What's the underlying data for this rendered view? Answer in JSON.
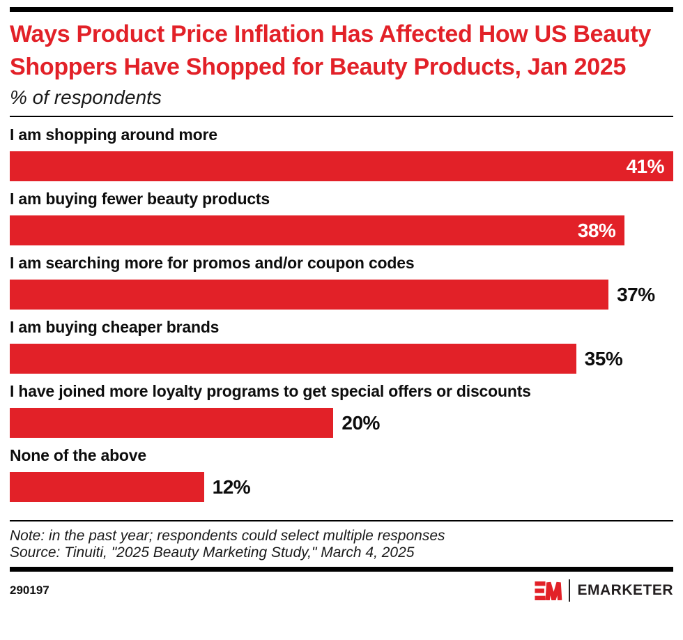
{
  "header": {
    "title": "Ways Product Price Inflation Has Affected How US Beauty Shoppers Have Shopped for Beauty Products, Jan 2025",
    "subtitle": "% of respondents"
  },
  "chart_data": {
    "type": "bar",
    "orientation": "horizontal",
    "title": "Ways Product Price Inflation Has Affected How US Beauty Shoppers Have Shopped for Beauty Products, Jan 2025",
    "subtitle": "% of respondents",
    "categories": [
      "I am shopping around more",
      "I am buying fewer beauty products",
      "I am searching more for promos and/or coupon codes",
      "I am buying cheaper brands",
      "I have joined more loyalty programs to get special offers or discounts",
      "None of the above"
    ],
    "values": [
      41,
      38,
      37,
      35,
      20,
      12
    ],
    "value_suffix": "%",
    "xlim": [
      0,
      41
    ],
    "grid": false,
    "legend": "none",
    "bar_color": "#E22128",
    "label_inside": [
      true,
      true,
      false,
      false,
      false,
      false
    ]
  },
  "footnotes": {
    "note": "Note: in the past year; respondents could select multiple responses",
    "source": "Source: Tinuiti, \"2025 Beauty Marketing Study,\" March 4, 2025"
  },
  "footer": {
    "chart_number": "290197",
    "brand_name": "EMARKETER"
  },
  "colors": {
    "accent": "#E22128",
    "title_red": "#E22128",
    "text": "#0d0d0d",
    "rule": "#000000",
    "wordmark": "#231F20"
  }
}
